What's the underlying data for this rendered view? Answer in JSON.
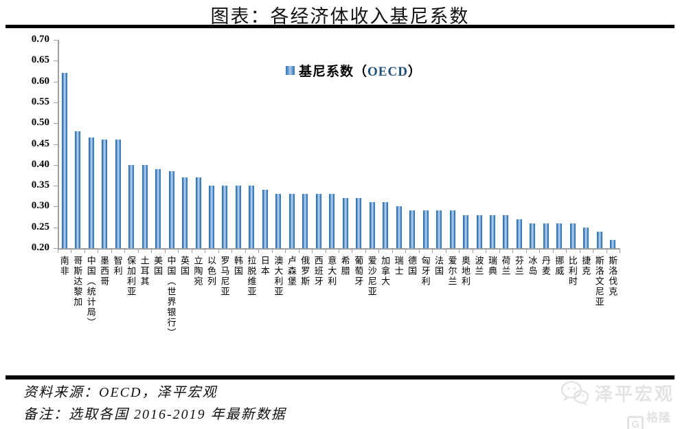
{
  "page": {
    "title": "图表：各经济体收入基尼系数",
    "source_line": "资料来源：OECD，泽平宏观",
    "note_line": "备注：选取各国 2016-2019 年最新数据",
    "watermark_wechat_brand": "泽平宏观",
    "watermark_glh_g": "G",
    "watermark_glh_text": "格隆汇"
  },
  "legend": {
    "prefix": "基尼系数（",
    "en": "OECD",
    "suffix": "）"
  },
  "colors": {
    "bar_edge": "#2E74B5",
    "bar_center": "#B0CDEA",
    "axis": "#9E9E9E",
    "legend_en_text": "#1F4E79",
    "rule": "#000000",
    "watermark": "#E3E3E3"
  },
  "chart_data": {
    "type": "bar",
    "title": "图表：各经济体收入基尼系数",
    "legend": "基尼系数（OECD）",
    "legend_position": "top-center",
    "grid": false,
    "xlabel": "",
    "ylabel": "",
    "ylim": [
      0.2,
      0.7
    ],
    "y_ticks": [
      0.7,
      0.65,
      0.6,
      0.55,
      0.5,
      0.45,
      0.4,
      0.35,
      0.3,
      0.25,
      0.2
    ],
    "categories": [
      "南非",
      "哥斯达黎加",
      "中国（统计局）",
      "墨西哥",
      "智利",
      "保加利亚",
      "土耳其",
      "美国",
      "中国（世界银行）",
      "英国",
      "立陶宛",
      "以色列",
      "罗马尼亚",
      "韩国",
      "拉脱维亚",
      "日本",
      "澳大利亚",
      "卢森堡",
      "俄罗斯",
      "西班牙",
      "意大利",
      "希腊",
      "葡萄牙",
      "爱沙尼亚",
      "加拿大",
      "瑞士",
      "德国",
      "匈牙利",
      "法国",
      "爱尔兰",
      "奥地利",
      "波兰",
      "瑞典",
      "荷兰",
      "芬兰",
      "冰岛",
      "丹麦",
      "挪威",
      "比利时",
      "捷克",
      "斯洛文尼亚",
      "斯洛伐克"
    ],
    "values": [
      0.62,
      0.48,
      0.465,
      0.46,
      0.46,
      0.4,
      0.4,
      0.39,
      0.385,
      0.37,
      0.37,
      0.35,
      0.35,
      0.35,
      0.35,
      0.34,
      0.33,
      0.33,
      0.33,
      0.33,
      0.33,
      0.32,
      0.32,
      0.31,
      0.31,
      0.3,
      0.29,
      0.29,
      0.29,
      0.29,
      0.28,
      0.28,
      0.28,
      0.28,
      0.27,
      0.26,
      0.26,
      0.26,
      0.26,
      0.25,
      0.24,
      0.22
    ]
  }
}
